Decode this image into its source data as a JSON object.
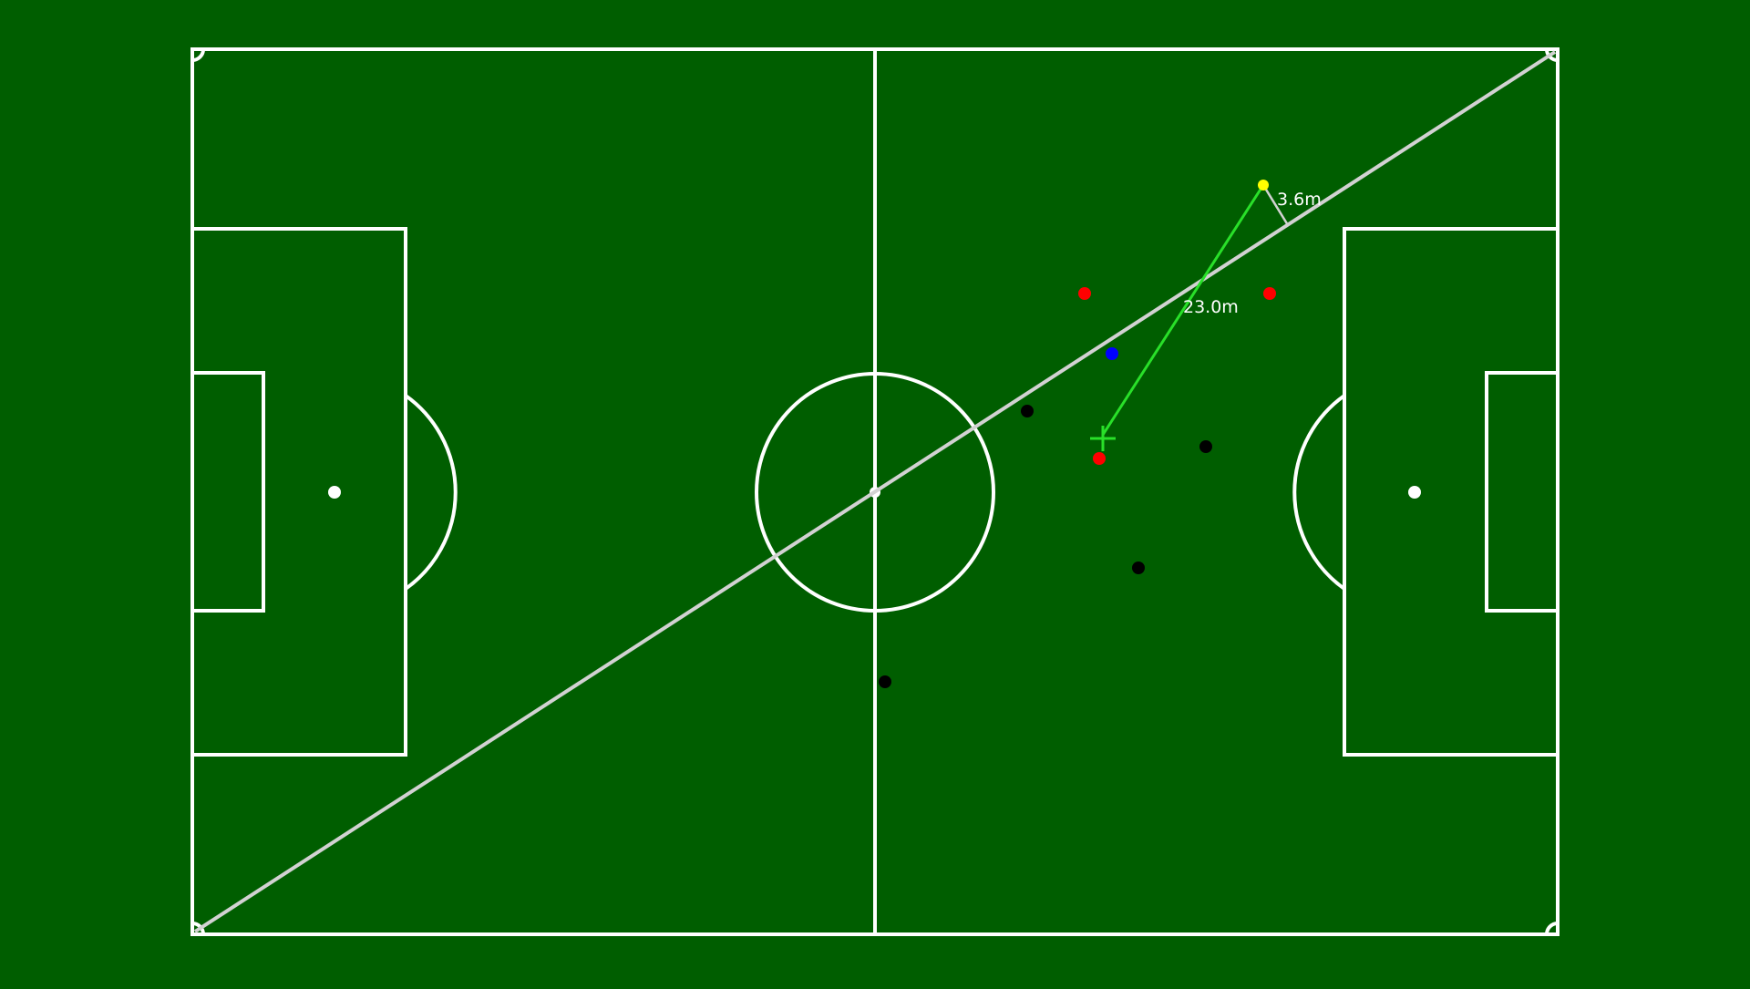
{
  "colors": {
    "pitch": "#005e00",
    "lines": "#ffffff",
    "diagonal": "#d2d2d2",
    "pass": "#29e029",
    "ball": "#ffff00",
    "team_red": "#ff0000",
    "team_black": "#000000",
    "player_blue": "#0000ff",
    "spot": "#ffffff"
  },
  "measurements": {
    "pass_distance": "23.0m",
    "offset_distance": "3.6m"
  },
  "pass_target_icon": "crosshair-plus-icon",
  "ball_icon": "ball-dot-icon"
}
